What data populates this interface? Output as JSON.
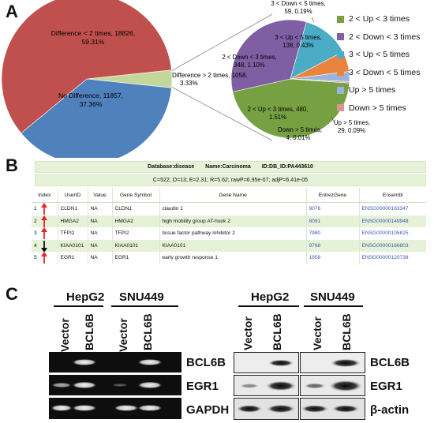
{
  "panels": {
    "a": "A",
    "b": "B",
    "c": "C"
  },
  "pie_main": {
    "slices": [
      {
        "label": "Difference < 2 times, 18826,",
        "pct": "59.31%",
        "value": 18826,
        "color": "#c0504d"
      },
      {
        "label": "No Difference, 11857,",
        "pct": "37.36%",
        "value": 11857,
        "color": "#4f81bd"
      },
      {
        "label": "Difference > 2 times, 1058,",
        "pct": "3.33%",
        "value": 1058,
        "color": "#c4d79b"
      }
    ]
  },
  "pie_detail": {
    "slices": [
      {
        "label": "2 < Up < 3 times, 480,",
        "pct": "1.51%",
        "value": 480,
        "color": "#77a043"
      },
      {
        "label": "2 < Down < 3 times,",
        "label2": "348, 1.10%",
        "value": 348,
        "color": "#7f5fa3"
      },
      {
        "label": "3 < Up < 5 times,",
        "label2": "138, 0.43%",
        "value": 138,
        "color": "#4bacc6"
      },
      {
        "label": "3 < Down < 5 times,",
        "label2": "59, 0.19%",
        "value": 59,
        "color": "#e8843d"
      },
      {
        "label": "Up > 5 times,",
        "label2": "29, 0.09%",
        "value": 29,
        "color": "#9bb2dc"
      },
      {
        "label": "Down > 5 times,",
        "label2": "4, 0.01%",
        "value": 4,
        "color": "#d99594"
      }
    ]
  },
  "legend": [
    {
      "label": "2 < Up < 3 times",
      "color": "#77a043"
    },
    {
      "label": "2 < Down < 3 times",
      "color": "#7f5fa3"
    },
    {
      "label": "3 < Up < 5 times",
      "color": "#4bacc6"
    },
    {
      "label": "3 < Down < 5 times",
      "color": "#e8843d"
    },
    {
      "label": "Up > 5 times",
      "color": "#9bb2dc"
    },
    {
      "label": "Down > 5 times",
      "color": "#d99594"
    }
  ],
  "table": {
    "database": "Database:disease",
    "name": "Name:Carcinoma",
    "id": "ID:DB_ID:PA443610",
    "stats": "C=522; O=13; E=2.31; R=5.62; rawP=6.95e-07; adjP=6.41e-05",
    "columns": [
      "Index",
      "UserID",
      "Value",
      "Gene Symbol",
      "Gene Name",
      "EntrezGene",
      "Ensembl"
    ],
    "rows": [
      {
        "index": "1",
        "direction": "up",
        "userid": "CLDN1",
        "value": "NA",
        "symbol": "CLDN1",
        "name": "claudin 1",
        "entrez": "9076",
        "ensembl": "ENSG00000163347"
      },
      {
        "index": "2",
        "direction": "up",
        "userid": "HMGA2",
        "value": "NA",
        "symbol": "HMGA2",
        "name": "high mobility group AT-hook 2",
        "entrez": "8091",
        "ensembl": "ENSG00000149948"
      },
      {
        "index": "3",
        "direction": "up",
        "userid": "TFPI2",
        "value": "NA",
        "symbol": "TFPI2",
        "name": "tissue factor pathway inhibitor 2",
        "entrez": "7980",
        "ensembl": "ENSG00000105825"
      },
      {
        "index": "4",
        "direction": "down",
        "userid": "KIAA0101",
        "value": "NA",
        "symbol": "KIAA0101",
        "name": "KIAA0101",
        "entrez": "9768",
        "ensembl": "ENSG00000166803"
      },
      {
        "index": "5",
        "direction": "up",
        "userid": "EGR1",
        "value": "NA",
        "symbol": "EGR1",
        "name": "early growth response 1",
        "entrez": "1958",
        "ensembl": "ENSG00000120738"
      }
    ],
    "arrow_colors": {
      "up": "#e8242a",
      "down": "#111111"
    }
  },
  "blots": {
    "left": {
      "cell_lines": [
        "HepG2",
        "SNU449"
      ],
      "lanes": [
        "Vector",
        "BCL6B",
        "Vector",
        "BCL6B"
      ],
      "bands": [
        "BCL6B",
        "EGR1",
        "GAPDH"
      ]
    },
    "right": {
      "cell_lines": [
        "HepG2",
        "SNU449"
      ],
      "lanes": [
        "Vector",
        "BCL6B",
        "Vector",
        "BCL6B"
      ],
      "bands": [
        "BCL6B",
        "EGR1",
        "β-actin"
      ]
    }
  }
}
